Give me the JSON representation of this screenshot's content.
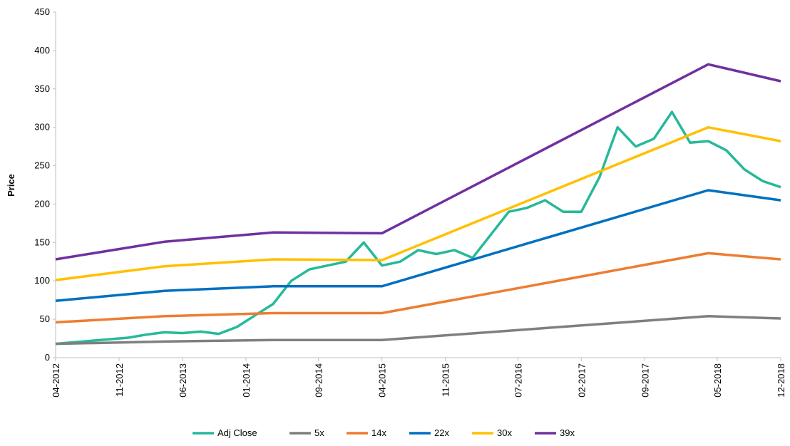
{
  "chart_data": {
    "type": "line",
    "ylabel": "Price",
    "xlim": [
      "04-2012",
      "12-2018"
    ],
    "xticks": [
      "04-2012",
      "11-2012",
      "06-2013",
      "01-2014",
      "09-2014",
      "04-2015",
      "11-2015",
      "07-2016",
      "02-2017",
      "09-2017",
      "05-2018",
      "12-2018"
    ],
    "ylim": [
      0,
      450
    ],
    "yticks": [
      0,
      50,
      100,
      150,
      200,
      250,
      300,
      350,
      400,
      450
    ],
    "legend": "bottom",
    "series": [
      {
        "name": "Adj Close",
        "color": "#26b99a",
        "x": [
          "04-2012",
          "06-2012",
          "08-2012",
          "10-2012",
          "12-2012",
          "02-2013",
          "04-2013",
          "06-2013",
          "08-2013",
          "10-2013",
          "12-2013",
          "02-2014",
          "04-2014",
          "06-2014",
          "08-2014",
          "10-2014",
          "12-2014",
          "02-2015",
          "04-2015",
          "06-2015",
          "08-2015",
          "10-2015",
          "12-2015",
          "02-2016",
          "04-2016",
          "06-2016",
          "08-2016",
          "10-2016",
          "12-2016",
          "02-2017",
          "04-2017",
          "06-2017",
          "08-2017",
          "10-2017",
          "12-2017",
          "02-2018",
          "04-2018",
          "06-2018",
          "08-2018",
          "10-2018",
          "12-2018"
        ],
        "values": [
          18,
          20,
          22,
          24,
          26,
          30,
          33,
          32,
          34,
          31,
          40,
          55,
          70,
          100,
          115,
          120,
          125,
          150,
          120,
          125,
          140,
          135,
          140,
          130,
          160,
          190,
          195,
          205,
          190,
          190,
          235,
          300,
          275,
          285,
          320,
          280,
          282,
          270,
          245,
          230,
          222
        ]
      },
      {
        "name": "5x",
        "color": "#7f7f7f",
        "x": [
          "04-2012",
          "04-2013",
          "04-2014",
          "04-2015",
          "04-2018",
          "12-2018"
        ],
        "values": [
          18,
          21,
          23,
          23,
          54,
          51
        ]
      },
      {
        "name": "14x",
        "color": "#ed7d31",
        "x": [
          "04-2012",
          "04-2013",
          "04-2014",
          "04-2015",
          "04-2018",
          "12-2018"
        ],
        "values": [
          46,
          54,
          58,
          58,
          136,
          128
        ]
      },
      {
        "name": "22x",
        "color": "#0070c0",
        "x": [
          "04-2012",
          "04-2013",
          "04-2014",
          "04-2015",
          "04-2018",
          "12-2018"
        ],
        "values": [
          74,
          87,
          93,
          93,
          218,
          205
        ]
      },
      {
        "name": "30x",
        "color": "#ffc000",
        "x": [
          "04-2012",
          "04-2013",
          "04-2014",
          "04-2015",
          "04-2018",
          "12-2018"
        ],
        "values": [
          101,
          119,
          128,
          127,
          300,
          282
        ]
      },
      {
        "name": "39x",
        "color": "#7030a0",
        "x": [
          "04-2012",
          "04-2013",
          "04-2014",
          "04-2015",
          "04-2018",
          "12-2018"
        ],
        "values": [
          128,
          151,
          163,
          162,
          382,
          360
        ]
      }
    ]
  }
}
